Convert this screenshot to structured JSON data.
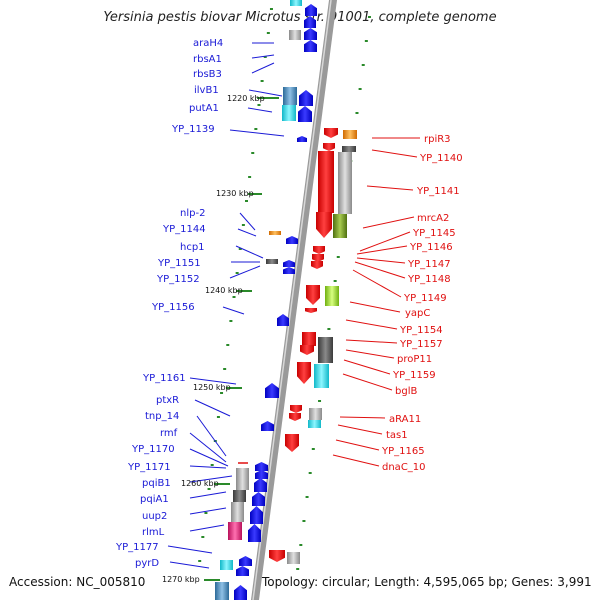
{
  "title": "Yersinia pestis biovar Microtus str. 91001, complete genome",
  "accession": "Accession: NC_005810",
  "stats": "Topology: circular; Length: 4,595,065 bp; Genes: 3,991",
  "kbp_ticks": [
    "1220 kbp",
    "1230 kbp",
    "1240 kbp",
    "1250 kbp",
    "1260 kbp",
    "1270 kbp"
  ],
  "left_genes": [
    "araH4",
    "rbsA1",
    "rbsB3",
    "ilvB1",
    "putA1",
    "YP_1139",
    "nlp-2",
    "YP_1144",
    "hcp1",
    "YP_1151",
    "YP_1152",
    "YP_1156",
    "YP_1161",
    "ptxR",
    "tnp_14",
    "rmf",
    "YP_1170",
    "YP_1171",
    "pqiB1",
    "pqiA1",
    "uup2",
    "rlmL",
    "YP_1177",
    "pyrD"
  ],
  "right_genes": [
    "rpiR3",
    "YP_1140",
    "YP_1141",
    "mrcA2",
    "YP_1145",
    "YP_1146",
    "YP_1147",
    "YP_1148",
    "YP_1149",
    "yapC",
    "YP_1154",
    "YP_1157",
    "proP11",
    "YP_1159",
    "bglB",
    "aRA11",
    "tas1",
    "YP_1165",
    "dnaC_10"
  ],
  "colors": {
    "forward_strand": "#1a1ad6",
    "reverse_strand": "#e01010",
    "backbone": "#9a9a9a",
    "gc_tick": "#2a8a2a",
    "cyan_feature": "#2ee0f0",
    "steel_feature": "#4a8fc0",
    "magenta_feature": "#e8207a",
    "olive_feature": "#6f9a20",
    "lime_feature": "#9ad82a",
    "orange_feature": "#f08a10",
    "gray_feature": "#b8b8b8",
    "dark_feature": "#555555"
  }
}
